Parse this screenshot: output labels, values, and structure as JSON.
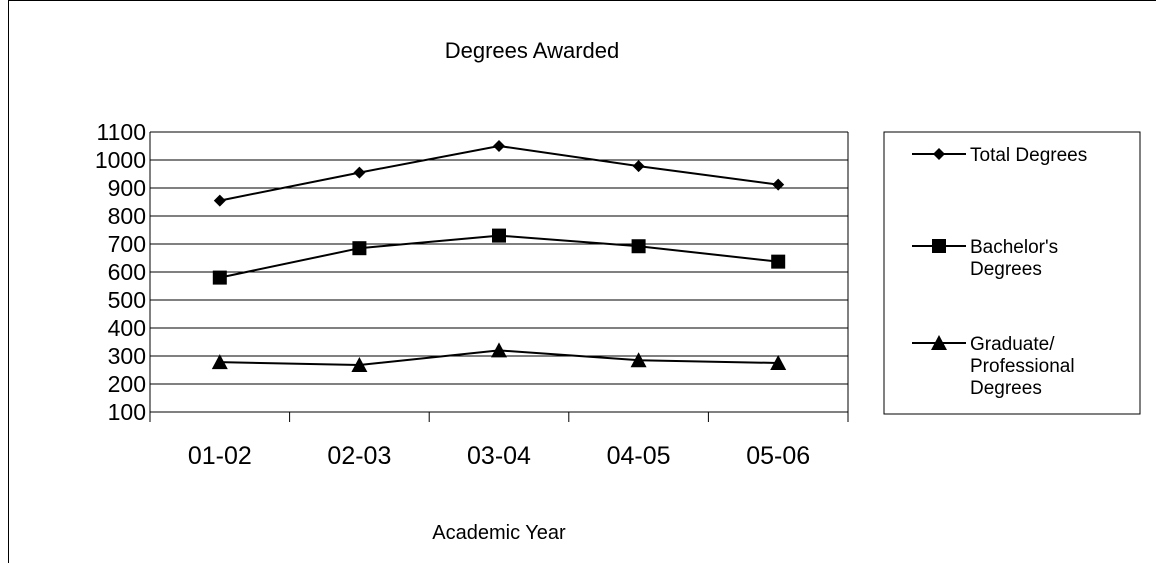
{
  "chart_data": {
    "type": "line",
    "title": "Degrees Awarded",
    "xlabel": "Academic Year",
    "ylabel": "",
    "categories": [
      "01-02",
      "02-03",
      "03-04",
      "04-05",
      "05-06"
    ],
    "ylim": [
      100,
      1100
    ],
    "yticks": [
      100,
      200,
      300,
      400,
      500,
      600,
      700,
      800,
      900,
      1000,
      1100
    ],
    "grid": true,
    "legend_position": "right",
    "series": [
      {
        "name": "Total Degrees",
        "marker": "diamond",
        "values": [
          855,
          955,
          1050,
          978,
          912
        ]
      },
      {
        "name": "Bachelor's Degrees",
        "marker": "square",
        "values": [
          580,
          685,
          730,
          692,
          637
        ]
      },
      {
        "name": "Graduate/ Professional Degrees",
        "marker": "triangle",
        "values": [
          278,
          268,
          320,
          285,
          275
        ]
      }
    ]
  },
  "legend": {
    "items": [
      {
        "lines": [
          "Total Degrees"
        ]
      },
      {
        "lines": [
          "Bachelor's",
          "Degrees"
        ]
      },
      {
        "lines": [
          "Graduate/",
          "Professional",
          "Degrees"
        ]
      }
    ]
  },
  "colors": {
    "line": "#000000",
    "background": "#ffffff"
  }
}
